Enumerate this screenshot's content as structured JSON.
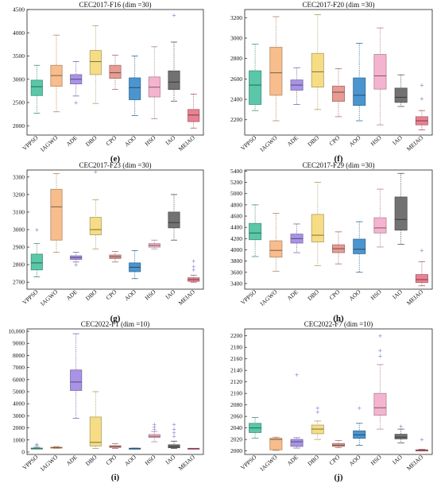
{
  "colors": [
    "#5ac8a8",
    "#f8bd8c",
    "#a993e6",
    "#f6dd85",
    "#e69b93",
    "#4b95cf",
    "#f4b4cf",
    "#727272",
    "#ea8093"
  ],
  "chart_data": [
    {
      "type": "box",
      "title": "CEC2017-F16 (dim =30)",
      "panel_label": "(e)",
      "categories": [
        "VPPSO",
        "IAGWO",
        "ADE",
        "DBO",
        "CPO",
        "AOO",
        "HSO",
        "IAO",
        "MEIAO"
      ],
      "ylim": [
        1800,
        4500
      ],
      "yticks": [
        2000,
        2500,
        3000,
        3500,
        4000,
        4500
      ],
      "boxes": [
        {
          "min": 2270,
          "q1": 2650,
          "median": 2840,
          "q3": 2980,
          "max": 3300,
          "outliers": []
        },
        {
          "min": 2300,
          "q1": 2850,
          "median": 3080,
          "q3": 3300,
          "max": 3950,
          "outliers": []
        },
        {
          "min": 2640,
          "q1": 2900,
          "median": 3000,
          "q3": 3100,
          "max": 3380,
          "outliers": [
            2500
          ]
        },
        {
          "min": 2480,
          "q1": 3100,
          "median": 3380,
          "q3": 3620,
          "max": 4150,
          "outliers": []
        },
        {
          "min": 2780,
          "q1": 3020,
          "median": 3140,
          "q3": 3300,
          "max": 3520,
          "outliers": []
        },
        {
          "min": 2220,
          "q1": 2560,
          "median": 2820,
          "q3": 3030,
          "max": 3500,
          "outliers": []
        },
        {
          "min": 2150,
          "q1": 2620,
          "median": 2830,
          "q3": 3050,
          "max": 3700,
          "outliers": []
        },
        {
          "min": 2530,
          "q1": 2780,
          "median": 2940,
          "q3": 3180,
          "max": 3800,
          "outliers": [
            4380
          ]
        },
        {
          "min": 1950,
          "q1": 2090,
          "median": 2230,
          "q3": 2350,
          "max": 2680,
          "outliers": []
        }
      ]
    },
    {
      "type": "box",
      "title": "CEC2017-F20 (dim =30)",
      "panel_label": "(f)",
      "categories": [
        "VPPSO",
        "IAGWO",
        "ADE",
        "DBO",
        "CPO",
        "AOO",
        "HSO",
        "IAO",
        "MEIAO"
      ],
      "ylim": [
        2050,
        3280
      ],
      "yticks": [
        2200,
        2400,
        2600,
        2800,
        3000,
        3200
      ],
      "boxes": [
        {
          "min": 2290,
          "q1": 2350,
          "median": 2540,
          "q3": 2680,
          "max": 2940,
          "outliers": []
        },
        {
          "min": 2190,
          "q1": 2440,
          "median": 2660,
          "q3": 2910,
          "max": 3210,
          "outliers": []
        },
        {
          "min": 2350,
          "q1": 2490,
          "median": 2540,
          "q3": 2590,
          "max": 2710,
          "outliers": []
        },
        {
          "min": 2300,
          "q1": 2520,
          "median": 2670,
          "q3": 2850,
          "max": 3230,
          "outliers": []
        },
        {
          "min": 2230,
          "q1": 2380,
          "median": 2470,
          "q3": 2530,
          "max": 2700,
          "outliers": []
        },
        {
          "min": 2190,
          "q1": 2340,
          "median": 2440,
          "q3": 2610,
          "max": 2950,
          "outliers": []
        },
        {
          "min": 2150,
          "q1": 2500,
          "median": 2630,
          "q3": 2840,
          "max": 3100,
          "outliers": []
        },
        {
          "min": 2330,
          "q1": 2370,
          "median": 2420,
          "q3": 2510,
          "max": 2640,
          "outliers": []
        },
        {
          "min": 2100,
          "q1": 2150,
          "median": 2190,
          "q3": 2230,
          "max": 2290,
          "outliers": [
            2410,
            2540
          ]
        }
      ]
    },
    {
      "type": "box",
      "title": "CEC2017-F23 (dim =30)",
      "panel_label": "(g)",
      "categories": [
        "VPPSO",
        "IAGWO",
        "ADE",
        "DBO",
        "CPO",
        "AOO",
        "HSO",
        "IAO",
        "MEIAO"
      ],
      "ylim": [
        2660,
        3340
      ],
      "yticks": [
        2700,
        2800,
        2900,
        3000,
        3100,
        3200,
        3300
      ],
      "boxes": [
        {
          "min": 2730,
          "q1": 2770,
          "median": 2810,
          "q3": 2860,
          "max": 2920,
          "outliers": [
            3000
          ]
        },
        {
          "min": 2870,
          "q1": 2940,
          "median": 3130,
          "q3": 3230,
          "max": 3320,
          "outliers": []
        },
        {
          "min": 2815,
          "q1": 2830,
          "median": 2840,
          "q3": 2850,
          "max": 2870,
          "outliers": [
            2800
          ]
        },
        {
          "min": 2890,
          "q1": 2970,
          "median": 3000,
          "q3": 3070,
          "max": 3170,
          "outliers": [
            3330
          ]
        },
        {
          "min": 2815,
          "q1": 2835,
          "median": 2845,
          "q3": 2855,
          "max": 2875,
          "outliers": []
        },
        {
          "min": 2720,
          "q1": 2760,
          "median": 2785,
          "q3": 2810,
          "max": 2880,
          "outliers": []
        },
        {
          "min": 2890,
          "q1": 2900,
          "median": 2910,
          "q3": 2920,
          "max": 2940,
          "outliers": []
        },
        {
          "min": 2940,
          "q1": 3010,
          "median": 3040,
          "q3": 3100,
          "max": 3200,
          "outliers": []
        },
        {
          "min": 2700,
          "q1": 2705,
          "median": 2715,
          "q3": 2725,
          "max": 2740,
          "outliers": [
            2770,
            2790,
            2820
          ]
        }
      ]
    },
    {
      "type": "box",
      "title": "CEC2017-F29 (dim =30)",
      "panel_label": "(h)",
      "categories": [
        "VPPSO",
        "IAGWO",
        "ADE",
        "DBO",
        "CPO",
        "AOO",
        "HSO",
        "IAO",
        "MEIAO"
      ],
      "ylim": [
        3300,
        5420
      ],
      "yticks": [
        3400,
        3600,
        3800,
        4000,
        4200,
        4400,
        4600,
        4800,
        5000,
        5200,
        5400
      ],
      "boxes": [
        {
          "min": 3880,
          "q1": 4180,
          "median": 4300,
          "q3": 4470,
          "max": 4800,
          "outliers": []
        },
        {
          "min": 3620,
          "q1": 3870,
          "median": 3990,
          "q3": 4160,
          "max": 4650,
          "outliers": []
        },
        {
          "min": 3950,
          "q1": 4120,
          "median": 4200,
          "q3": 4280,
          "max": 4460,
          "outliers": []
        },
        {
          "min": 3720,
          "q1": 4140,
          "median": 4260,
          "q3": 4630,
          "max": 5200,
          "outliers": []
        },
        {
          "min": 3750,
          "q1": 3950,
          "median": 4020,
          "q3": 4090,
          "max": 4320,
          "outliers": []
        },
        {
          "min": 3600,
          "q1": 3930,
          "median": 4010,
          "q3": 4190,
          "max": 4500,
          "outliers": []
        },
        {
          "min": 4050,
          "q1": 4300,
          "median": 4390,
          "q3": 4570,
          "max": 5080,
          "outliers": []
        },
        {
          "min": 4100,
          "q1": 4350,
          "median": 4540,
          "q3": 4940,
          "max": 5360,
          "outliers": []
        },
        {
          "min": 3360,
          "q1": 3420,
          "median": 3470,
          "q3": 3560,
          "max": 3790,
          "outliers": [
            3990
          ]
        }
      ]
    },
    {
      "type": "box",
      "title": "CEC2022-F1 (dim =10)",
      "panel_label": "(i)",
      "categories": [
        "VPPSO",
        "IAGWO",
        "ADE",
        "DBO",
        "CPO",
        "AOO",
        "HSO",
        "IAO",
        "MEIAO"
      ],
      "ylim": [
        -200,
        10200
      ],
      "yticks": [
        0,
        1000,
        2000,
        3000,
        4000,
        5000,
        6000,
        7000,
        8000,
        9000,
        10000
      ],
      "ytick_labels": [
        "0",
        "1000",
        "2000",
        "3000",
        "4000",
        "5000",
        "6000",
        "7000",
        "8000",
        "9000",
        "10,000"
      ],
      "boxes": [
        {
          "min": 300,
          "q1": 300,
          "median": 310,
          "q3": 320,
          "max": 400,
          "outliers": [
            550,
            650
          ]
        },
        {
          "min": 300,
          "q1": 330,
          "median": 360,
          "q3": 400,
          "max": 450,
          "outliers": []
        },
        {
          "min": 2800,
          "q1": 5100,
          "median": 5800,
          "q3": 6800,
          "max": 9800,
          "outliers": []
        },
        {
          "min": 300,
          "q1": 500,
          "median": 800,
          "q3": 2900,
          "max": 5000,
          "outliers": []
        },
        {
          "min": 300,
          "q1": 380,
          "median": 450,
          "q3": 520,
          "max": 700,
          "outliers": []
        },
        {
          "min": 300,
          "q1": 300,
          "median": 305,
          "q3": 310,
          "max": 320,
          "outliers": []
        },
        {
          "min": 850,
          "q1": 1200,
          "median": 1300,
          "q3": 1450,
          "max": 1700,
          "outliers": [
            1900,
            2100,
            2300
          ]
        },
        {
          "min": 300,
          "q1": 350,
          "median": 450,
          "q3": 600,
          "max": 900,
          "outliers": [
            1300,
            1600,
            1900,
            2300
          ]
        },
        {
          "min": 300,
          "q1": 300,
          "median": 300,
          "q3": 300,
          "max": 300,
          "outliers": []
        }
      ]
    },
    {
      "type": "box",
      "title": "CEC2022-F7 (dim =10)",
      "panel_label": "(j)",
      "categories": [
        "VPPSO",
        "IAGWO",
        "ADE",
        "DBO",
        "CPO",
        "AOO",
        "HSO",
        "IAO",
        "MEIAO"
      ],
      "ylim": [
        1994,
        2212
      ],
      "yticks": [
        2000,
        2020,
        2040,
        2060,
        2080,
        2100,
        2120,
        2140,
        2160,
        2180,
        2200
      ],
      "boxes": [
        {
          "min": 2022,
          "q1": 2032,
          "median": 2040,
          "q3": 2048,
          "max": 2058,
          "outliers": []
        },
        {
          "min": 2001,
          "q1": 2002,
          "median": 2020,
          "q3": 2022,
          "max": 2024,
          "outliers": []
        },
        {
          "min": 2005,
          "q1": 2008,
          "median": 2016,
          "q3": 2020,
          "max": 2023,
          "outliers": [
            2133
          ]
        },
        {
          "min": 2020,
          "q1": 2030,
          "median": 2038,
          "q3": 2045,
          "max": 2052,
          "outliers": [
            2068,
            2075
          ]
        },
        {
          "min": 2006,
          "q1": 2008,
          "median": 2010,
          "q3": 2013,
          "max": 2018,
          "outliers": []
        },
        {
          "min": 2010,
          "q1": 2022,
          "median": 2028,
          "q3": 2035,
          "max": 2048,
          "outliers": [
            2075
          ]
        },
        {
          "min": 2038,
          "q1": 2062,
          "median": 2075,
          "q3": 2100,
          "max": 2150,
          "outliers": [
            2165,
            2175,
            2200
          ]
        },
        {
          "min": 2014,
          "q1": 2021,
          "median": 2024,
          "q3": 2029,
          "max": 2038,
          "outliers": [
            2043
          ]
        },
        {
          "min": 2000,
          "q1": 2000,
          "median": 2001,
          "q3": 2002,
          "max": 2003,
          "outliers": [
            2020
          ]
        }
      ]
    }
  ]
}
